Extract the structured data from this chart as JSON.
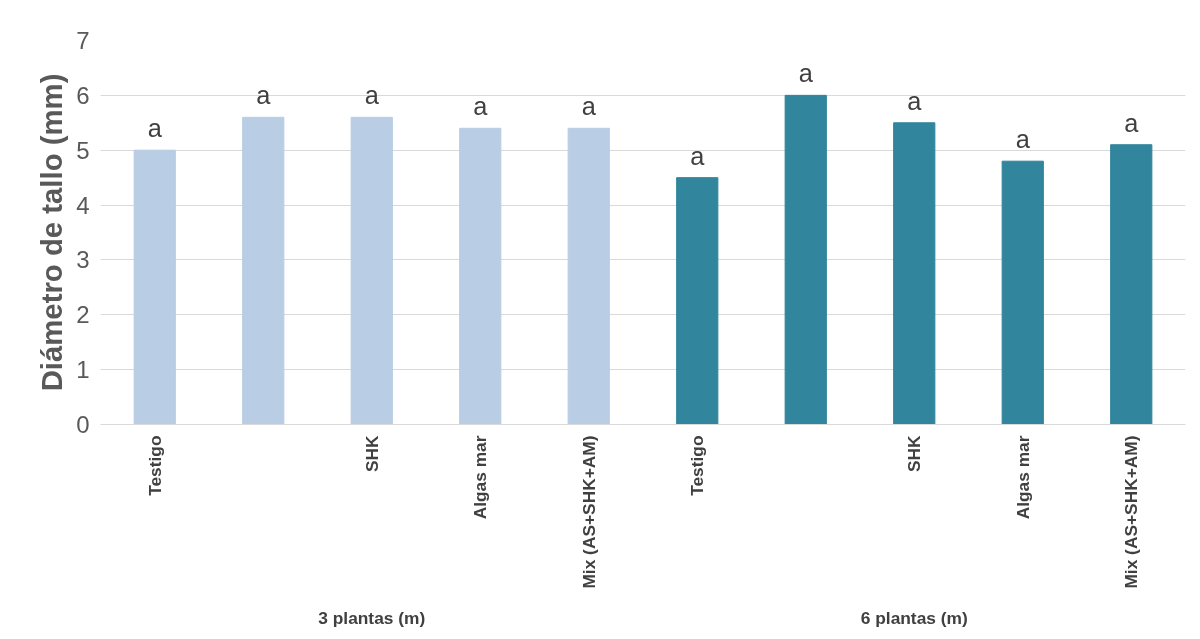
{
  "chart_data": {
    "type": "bar",
    "ylabel": "Diámetro de tallo (mm)",
    "categories": [
      "Testigo",
      null,
      "SHK",
      "Algas mar",
      "Mix (AS+SHK+AM)",
      "Testigo",
      null,
      "SHK",
      "Algas mar",
      "Mix (AS+SHK+AM)"
    ],
    "values": [
      5.0,
      5.6,
      5.6,
      5.4,
      5.4,
      4.5,
      6.0,
      5.5,
      4.8,
      5.1
    ],
    "colors": [
      "#b9cde5",
      "#b9cde5",
      "#b9cde5",
      "#b9cde5",
      "#b9cde5",
      "#31859c",
      "#31859c",
      "#31859c",
      "#31859c",
      "#31859c"
    ],
    "value_labels": [
      "a",
      "a",
      "a",
      "a",
      "a",
      "a",
      "a",
      "a",
      "a",
      "a"
    ],
    "annotations": [
      "3 plantas (m)",
      "6 plantas (m)"
    ],
    "ylim": [
      0,
      7
    ],
    "yticks": [
      0,
      1,
      2,
      3,
      4,
      5,
      6,
      7
    ],
    "grid": "y"
  }
}
